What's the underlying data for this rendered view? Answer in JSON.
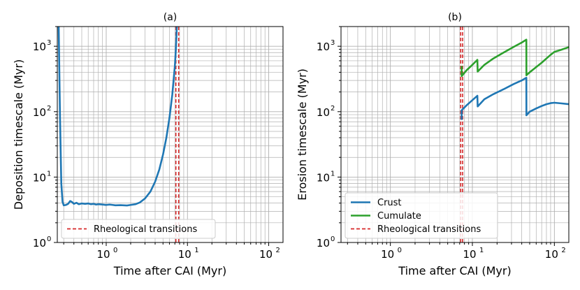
{
  "chart_data": [
    {
      "type": "line",
      "title": "(a)",
      "xlabel": "Time after CAI (Myr)",
      "ylabel": "Deposition timescale (Myr)",
      "xscale": "log",
      "yscale": "log",
      "xlim": [
        0.25,
        150
      ],
      "ylim": [
        1,
        2000
      ],
      "xticks": [
        {
          "value": 1,
          "base": "10",
          "exp": "0"
        },
        {
          "value": 10,
          "base": "10",
          "exp": "1"
        },
        {
          "value": 100,
          "base": "10",
          "exp": "2"
        }
      ],
      "yticks": [
        {
          "value": 1,
          "base": "10",
          "exp": "0"
        },
        {
          "value": 10,
          "base": "10",
          "exp": "1"
        },
        {
          "value": 100,
          "base": "10",
          "exp": "2"
        },
        {
          "value": 1000,
          "base": "10",
          "exp": "3"
        }
      ],
      "grid": true,
      "legend": {
        "location": "lower-left",
        "entries": [
          "Rheological transitions"
        ]
      },
      "vlines": [
        {
          "name": "Rheological transitions",
          "values": [
            7.2,
            7.8
          ],
          "color": "#d62728",
          "style": "dashed"
        }
      ],
      "series": [
        {
          "name": "Deposition",
          "color": "#1f77b4",
          "x": [
            0.26,
            0.27,
            0.28,
            0.29,
            0.3,
            0.32,
            0.34,
            0.36,
            0.38,
            0.4,
            0.43,
            0.46,
            0.5,
            0.55,
            0.6,
            0.65,
            0.7,
            0.75,
            0.8,
            0.9,
            1.0,
            1.1,
            1.2,
            1.3,
            1.5,
            1.8,
            2.0,
            2.3,
            2.6,
            3.0,
            3.5,
            4.0,
            4.5,
            5.0,
            5.5,
            6.0,
            6.5,
            7.0,
            7.2,
            7.4
          ],
          "y": [
            2000,
            80,
            8,
            4.2,
            3.7,
            3.75,
            3.9,
            4.3,
            4.15,
            3.9,
            4.05,
            3.85,
            3.95,
            3.9,
            3.95,
            3.85,
            3.9,
            3.8,
            3.85,
            3.8,
            3.75,
            3.8,
            3.75,
            3.7,
            3.72,
            3.68,
            3.75,
            3.85,
            4.1,
            4.7,
            6.0,
            8.5,
            13,
            22,
            40,
            80,
            180,
            500,
            900,
            2000
          ]
        }
      ]
    },
    {
      "type": "line",
      "title": "(b)",
      "xlabel": "Time after CAI (Myr)",
      "ylabel": "Erosion timescale (Myr)",
      "xscale": "log",
      "yscale": "log",
      "xlim": [
        0.25,
        150
      ],
      "ylim": [
        1,
        2000
      ],
      "xticks": [
        {
          "value": 1,
          "base": "10",
          "exp": "0"
        },
        {
          "value": 10,
          "base": "10",
          "exp": "1"
        },
        {
          "value": 100,
          "base": "10",
          "exp": "2"
        }
      ],
      "yticks": [
        {
          "value": 1,
          "base": "10",
          "exp": "0"
        },
        {
          "value": 10,
          "base": "10",
          "exp": "1"
        },
        {
          "value": 100,
          "base": "10",
          "exp": "2"
        },
        {
          "value": 1000,
          "base": "10",
          "exp": "3"
        }
      ],
      "grid": true,
      "legend": {
        "location": "lower-left",
        "entries": [
          "Crust",
          "Cumulate",
          "Rheological transitions"
        ]
      },
      "vlines": [
        {
          "name": "Rheological transitions",
          "values": [
            7.2,
            7.6
          ],
          "color": "#d62728",
          "style": "dashed"
        }
      ],
      "series": [
        {
          "name": "Crust",
          "color": "#1f77b4",
          "x": [
            7.4,
            7.4,
            8.5,
            10,
            11.5,
            11.6,
            14,
            18,
            24,
            32,
            40,
            45.5,
            45.6,
            50,
            60,
            70,
            80,
            90,
            100,
            120,
            150
          ],
          "y": [
            75,
            105,
            125,
            150,
            175,
            120,
            155,
            185,
            220,
            265,
            300,
            330,
            88,
            100,
            112,
            122,
            130,
            135,
            137,
            134,
            130
          ]
        },
        {
          "name": "Cumulate",
          "color": "#2ca02c",
          "x": [
            7.4,
            7.4,
            8.5,
            10,
            11.5,
            11.6,
            14,
            18,
            24,
            32,
            40,
            45.5,
            45.6,
            50,
            60,
            70,
            80,
            90,
            100,
            120,
            150
          ],
          "y": [
            500,
            350,
            430,
            520,
            620,
            410,
            520,
            650,
            800,
            980,
            1140,
            1260,
            360,
            400,
            480,
            560,
            650,
            740,
            820,
            880,
            970
          ]
        }
      ]
    }
  ]
}
